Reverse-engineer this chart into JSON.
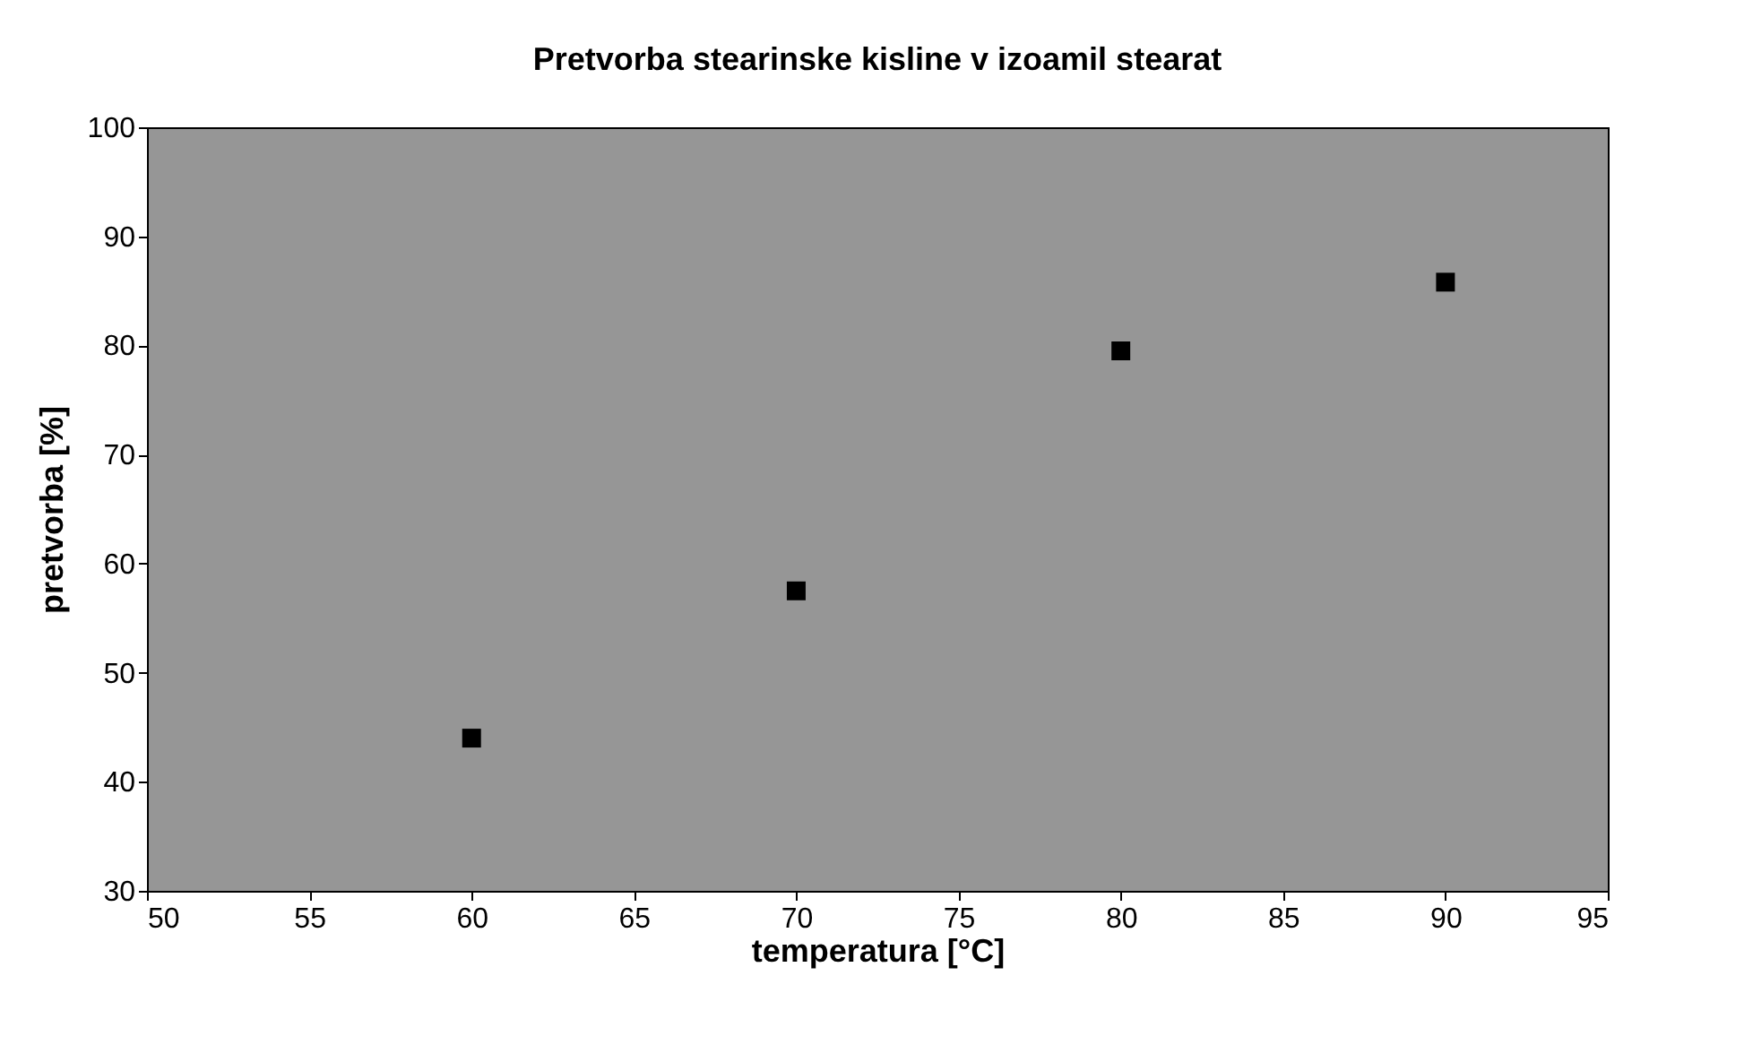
{
  "chart_data": {
    "type": "scatter",
    "title": "Pretvorba stearinske kisline v izoamil stearat",
    "xlabel": "temperatura [°C]",
    "ylabel": "pretvorba [%]",
    "x": [
      60,
      70,
      80,
      90
    ],
    "series": [
      {
        "color": "#000000",
        "values": [
          44,
          57.5,
          79.5,
          85.8
        ]
      }
    ],
    "xlim": [
      50,
      95
    ],
    "xticks": [
      50,
      55,
      60,
      65,
      70,
      75,
      80,
      85,
      90,
      95
    ],
    "ylim": [
      30,
      100
    ],
    "yticks": [
      30,
      40,
      50,
      60,
      70,
      80,
      90,
      100
    ],
    "marker": "square",
    "grid": false
  }
}
